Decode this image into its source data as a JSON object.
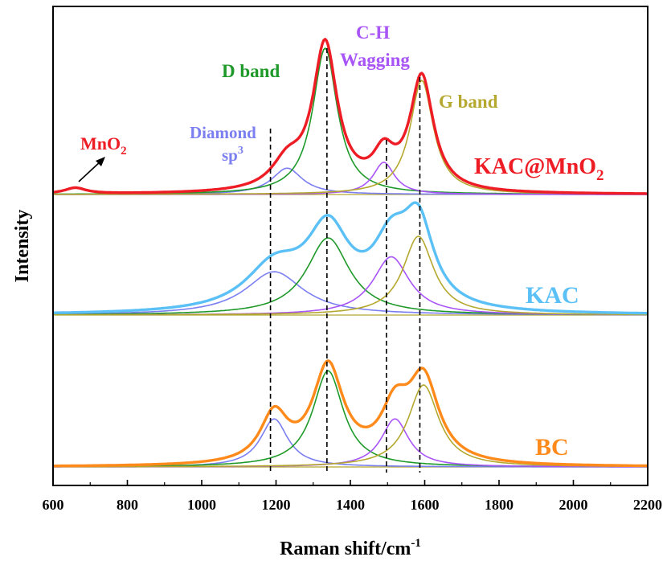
{
  "chart_data": {
    "type": "line",
    "xlabel": "Raman shift/cm",
    "xlabel_sup": "-1",
    "ylabel": "Intensity",
    "xlim": [
      600,
      2200
    ],
    "xticks": [
      600,
      800,
      1000,
      1200,
      1400,
      1600,
      1800,
      2000,
      2200
    ],
    "grid": false,
    "legend": "none",
    "colors": {
      "kac_mno2": "#ee1c25",
      "kac": "#5bc0f5",
      "bc": "#ff8a1c",
      "diamond": "#7b7ff0",
      "d_band": "#1f9a2a",
      "ch_wagging": "#a855f7",
      "g_band": "#b5a82e"
    },
    "panels": [
      {
        "key": "kac_mno2",
        "label": "KAC@MnO",
        "label_sub": "2",
        "envelope_color": "#ee1c25",
        "extra_peak": {
          "center": 660,
          "width": 35,
          "height": 0.04
        },
        "components": [
          {
            "name": "Diamond sp3",
            "center": 1230,
            "width": 50,
            "height": 0.18,
            "color": "#7b7ff0"
          },
          {
            "name": "D band",
            "center": 1332,
            "width": 40,
            "height": 1.0,
            "color": "#1f9a2a"
          },
          {
            "name": "C-H Wagging",
            "center": 1490,
            "width": 35,
            "height": 0.22,
            "color": "#a855f7"
          },
          {
            "name": "G band",
            "center": 1592,
            "width": 38,
            "height": 0.78,
            "color": "#b5a82e"
          }
        ]
      },
      {
        "key": "kac",
        "label": "KAC",
        "envelope_color": "#5bc0f5",
        "components": [
          {
            "name": "Diamond sp3",
            "center": 1195,
            "width": 95,
            "height": 0.55,
            "color": "#7b7ff0"
          },
          {
            "name": "D band",
            "center": 1340,
            "width": 70,
            "height": 0.98,
            "color": "#1f9a2a"
          },
          {
            "name": "C-H Wagging",
            "center": 1510,
            "width": 60,
            "height": 0.74,
            "color": "#a855f7"
          },
          {
            "name": "G band",
            "center": 1583,
            "width": 50,
            "height": 1.0,
            "color": "#b5a82e"
          }
        ]
      },
      {
        "key": "bc",
        "label": "BC",
        "envelope_color": "#ff8a1c",
        "components": [
          {
            "name": "Diamond sp3",
            "center": 1195,
            "width": 45,
            "height": 0.44,
            "color": "#7b7ff0"
          },
          {
            "name": "D band",
            "center": 1340,
            "width": 50,
            "height": 0.88,
            "color": "#1f9a2a"
          },
          {
            "name": "C-H Wagging",
            "center": 1520,
            "width": 45,
            "height": 0.44,
            "color": "#a855f7"
          },
          {
            "name": "G band",
            "center": 1597,
            "width": 50,
            "height": 0.75,
            "color": "#b5a82e"
          }
        ]
      }
    ],
    "annotations": {
      "mno2": "MnO",
      "mno2_sub": "2",
      "diamond": "Diamond",
      "sp": "sp",
      "sp_sup": "3",
      "d_band": "D band",
      "ch_line1": "C-H",
      "ch_line2": "Wagging",
      "g_band": "G band"
    },
    "dashed_lines_x": [
      1185,
      1337,
      1497,
      1587
    ]
  }
}
